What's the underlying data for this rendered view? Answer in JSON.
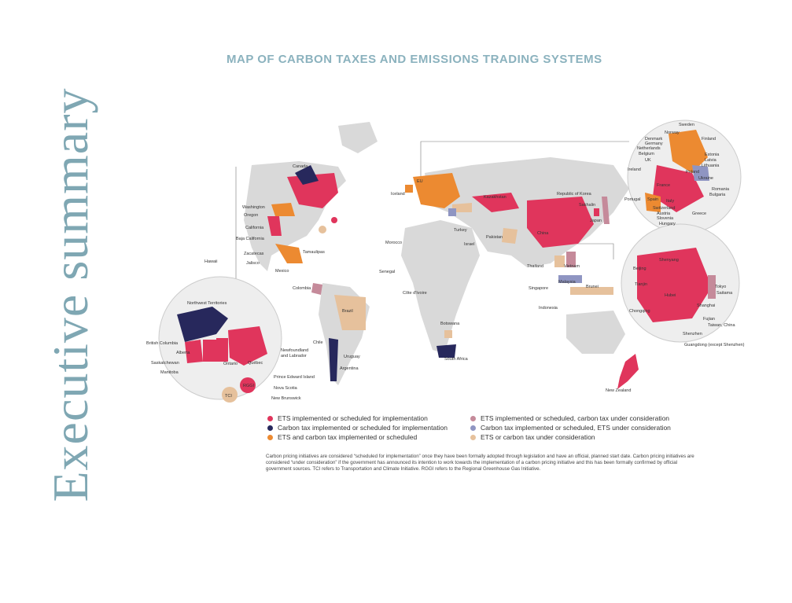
{
  "page": {
    "side_title": "Executive summary",
    "map_title": "MAP OF CARBON TAXES AND EMISSIONS TRADING SYSTEMS"
  },
  "colors": {
    "ets": "#e0355c",
    "tax": "#27285c",
    "both": "#ec8a31",
    "ets_tax_consider": "#c58a9a",
    "tax_ets_consider": "#8f95c2",
    "consider": "#e6c19c",
    "land": "#d9d9d9",
    "title": "#8bb2be"
  },
  "map_labels": {
    "canada": "Canada",
    "washington": "Washington",
    "oregon": "Oregon",
    "california": "California",
    "baja": "Baja California",
    "zacatecas": "Zacatecas",
    "tamaulipas": "Tamaulipas",
    "jalisco": "Jalisco",
    "mexico": "Mexico",
    "hawaii": "Hawaii",
    "iceland": "Iceland",
    "eu": "EU",
    "kazakhstan": "Kazakhstan",
    "korea": "Republic of Korea",
    "sakhalin": "Sakhalin",
    "japan": "Japan",
    "turkey": "Turkey",
    "china": "China",
    "morocco": "Morocco",
    "israel": "Israel",
    "pakistan": "Pakistan",
    "senegal": "Senegal",
    "colombia": "Colombia",
    "cote": "Côte d'Ivoire",
    "thailand": "Thailand",
    "vietnam": "Vietnam",
    "malaysia": "Malaysia",
    "singapore": "Singapore",
    "brunei": "Brunei",
    "indonesia": "Indonesia",
    "brazil": "Brazil",
    "botswana": "Botswana",
    "chile": "Chile",
    "uruguay": "Uruguay",
    "argentina": "Argentina",
    "south_africa": "South Africa",
    "new_zealand": "New Zealand"
  },
  "canada_inset": {
    "nwt": "Northwest Territories",
    "bc": "British Columbia",
    "alberta": "Alberta",
    "sask": "Saskatchewan",
    "manitoba": "Manitoba",
    "ontario": "Ontario",
    "quebec": "Québec",
    "nfl": "Newfoundland",
    "nfl2": "and Labrador",
    "pei": "Prince Edward Island",
    "ns": "Nova Scotia",
    "nb": "New Brunswick",
    "rggi": "RGGI",
    "tci": "TCI"
  },
  "europe_inset": {
    "sweden": "Sweden",
    "norway": "Norway",
    "finland": "Finland",
    "denmark": "Denmark",
    "germany": "Germany",
    "netherlands": "Netherlands",
    "belgium": "Belgium",
    "uk": "UK",
    "estonia": "Estonia",
    "latvia": "Latvia",
    "lithuania": "Lithuania",
    "ireland": "Ireland",
    "poland": "Poland",
    "ukraine": "Ukraine",
    "france": "France",
    "romania": "Romania",
    "bulgaria": "Bulgaria",
    "portugal": "Portugal",
    "spain": "Spain",
    "italy": "Italy",
    "switzerland": "Switzerland",
    "austria": "Austria",
    "slovenia": "Slovenia",
    "hungary": "Hungary",
    "greece": "Greece"
  },
  "china_inset": {
    "shenyang": "Shenyang",
    "beijing": "Beijing",
    "tianjin": "Tianjin",
    "hubei": "Hubei",
    "chongqing": "Chongqing",
    "shanghai": "Shanghai",
    "fujian": "Fujian",
    "taiwan": "Taiwan, China",
    "shenzhen": "Shenzhen",
    "guangdong": "Guangdong (except Shenzhen)",
    "tokyo": "Tokyo",
    "saitama": "Saitama"
  },
  "legend": [
    {
      "label": "ETS implemented or scheduled for implementation",
      "color": "#e0355c"
    },
    {
      "label": "ETS implemented or scheduled, carbon tax under consideration",
      "color": "#c58a9a"
    },
    {
      "label": "Carbon tax implemented or scheduled for implementation",
      "color": "#27285c"
    },
    {
      "label": "Carbon tax implemented or scheduled, ETS under consideration",
      "color": "#8f95c2"
    },
    {
      "label": "ETS and carbon tax implemented or scheduled",
      "color": "#ec8a31"
    },
    {
      "label": "ETS or carbon tax under consideration",
      "color": "#e6c19c"
    }
  ],
  "footnote": "Carbon pricing initiatives are considered “scheduled for implementation” once they have been formally adopted through legislation and have an official, planned start date. Carbon pricing initiatives are considered “under consideration” if the government has announced its intention to work towards the implementation of a carbon pricing initiative and this has been formally confirmed by official government sources. TCI refers to Transportation and Climate Initiative. RGGI refers to the Regional Greenhouse Gas Initiative."
}
